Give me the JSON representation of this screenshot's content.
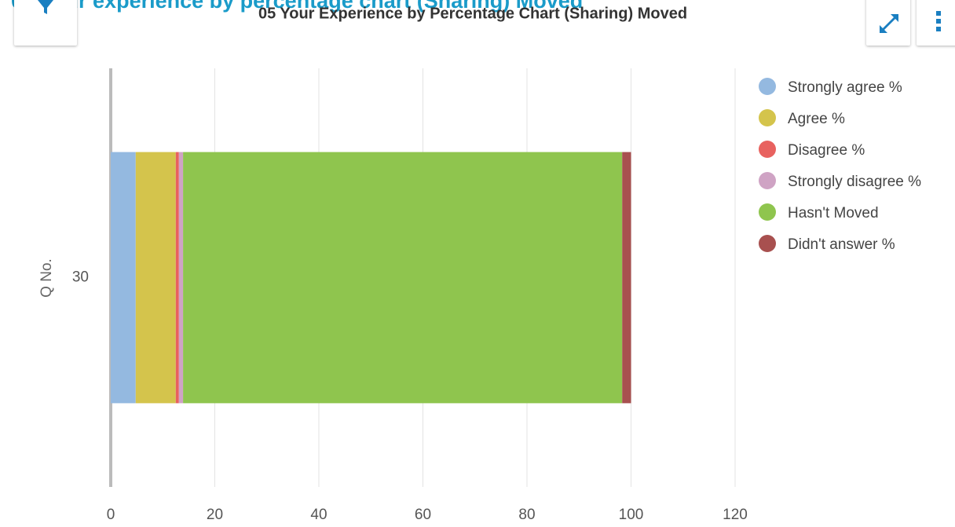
{
  "page_title": "05 Your experience by percentage chart (Sharing) Moved",
  "chart_data": {
    "type": "bar",
    "orientation": "horizontal",
    "stacked": true,
    "title": "05 Your Experience by Percentage Chart (Sharing) Moved",
    "ylabel": "Q No.",
    "categories": [
      "30"
    ],
    "series": [
      {
        "name": "Strongly agree %",
        "color": "#94b9e0",
        "values": [
          4.8
        ]
      },
      {
        "name": "Agree %",
        "color": "#d4c44c",
        "values": [
          7.7
        ]
      },
      {
        "name": "Disagree %",
        "color": "#e8625f",
        "values": [
          0.6
        ]
      },
      {
        "name": "Strongly disagree %",
        "color": "#cfa3c4",
        "values": [
          0.8
        ]
      },
      {
        "name": "Hasn't Moved",
        "color": "#8fc54e",
        "values": [
          84.4
        ]
      },
      {
        "name": "Didn't answer %",
        "color": "#a8504f",
        "values": [
          1.7
        ]
      }
    ],
    "xlim": [
      0,
      120
    ],
    "xticks": [
      0,
      20,
      40,
      60,
      80,
      100,
      120
    ],
    "grid": true,
    "legend": "right"
  }
}
